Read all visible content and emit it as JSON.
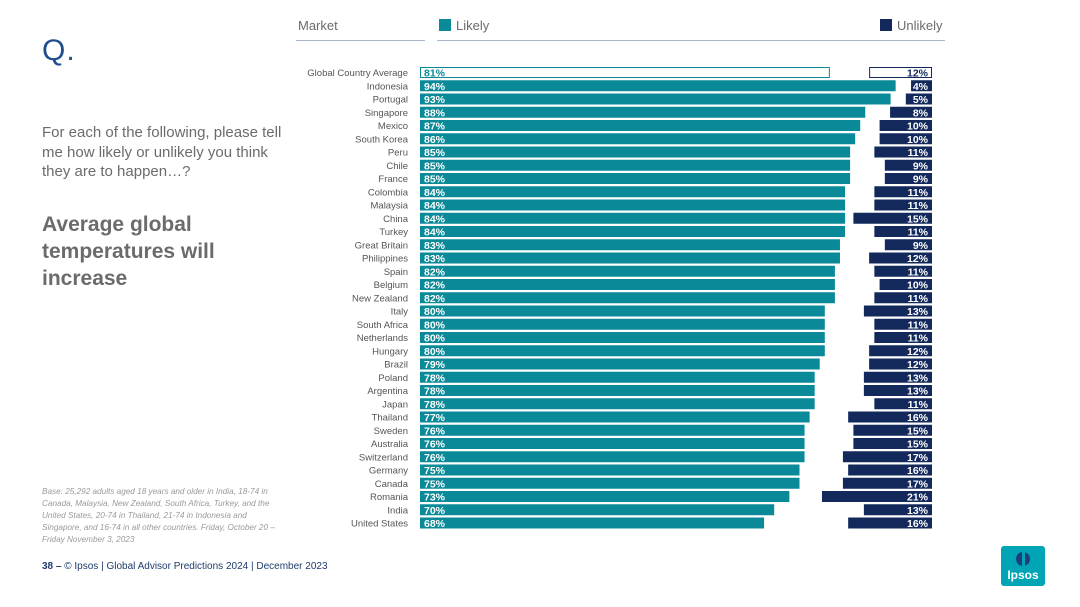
{
  "slide": {
    "q_letter": "Q.",
    "question": "For each of the following, please tell me how likely or unlikely you think they are to happen…?",
    "statement": "Average global temperatures will increase",
    "base_note": "Base: 25,292 adults aged 18 years and older in India, 18-74 in Canada, Malaysia, New Zealand, South Africa, Turkey, and the United States, 20-74 in Thailand, 21-74 in Indonesia and Singapore, and 16-74 in all other countries. Friday, October 20 – Friday November 3, 2023",
    "footer_page": "38 –",
    "footer_text": "© Ipsos | Global Advisor Predictions 2024 | December 2023",
    "logo_text": "Ipsos"
  },
  "header": {
    "market_label": "Market",
    "likely_label": "Likely",
    "unlikely_label": "Unlikely"
  },
  "colors": {
    "likely": "#0a8a98",
    "unlikely": "#13295b",
    "average_border": "#0a8a98"
  },
  "chart_data": {
    "type": "bar",
    "orientation": "horizontal",
    "categories": [
      "Global Country Average",
      "Indonesia",
      "Portugal",
      "Singapore",
      "Mexico",
      "South Korea",
      "Peru",
      "Chile",
      "France",
      "Colombia",
      "Malaysia",
      "China",
      "Turkey",
      "Great Britain",
      "Philippines",
      "Spain",
      "Belgium",
      "New Zealand",
      "Italy",
      "South Africa",
      "Netherlands",
      "Hungary",
      "Brazil",
      "Poland",
      "Argentina",
      "Japan",
      "Thailand",
      "Sweden",
      "Australia",
      "Switzerland",
      "Germany",
      "Canada",
      "Romania",
      "India",
      "United States"
    ],
    "series": [
      {
        "name": "Likely",
        "values": [
          81,
          94,
          93,
          88,
          87,
          86,
          85,
          85,
          85,
          84,
          84,
          84,
          84,
          83,
          83,
          82,
          82,
          82,
          80,
          80,
          80,
          80,
          79,
          78,
          78,
          78,
          77,
          76,
          76,
          76,
          75,
          75,
          73,
          70,
          68
        ]
      },
      {
        "name": "Unlikely",
        "values": [
          12,
          4,
          5,
          8,
          10,
          10,
          11,
          9,
          9,
          11,
          11,
          15,
          11,
          9,
          12,
          11,
          10,
          11,
          13,
          11,
          11,
          12,
          12,
          13,
          13,
          11,
          16,
          15,
          15,
          17,
          16,
          17,
          21,
          13,
          16
        ]
      }
    ],
    "value_format": "percent",
    "xlim": [
      0,
      100
    ]
  }
}
